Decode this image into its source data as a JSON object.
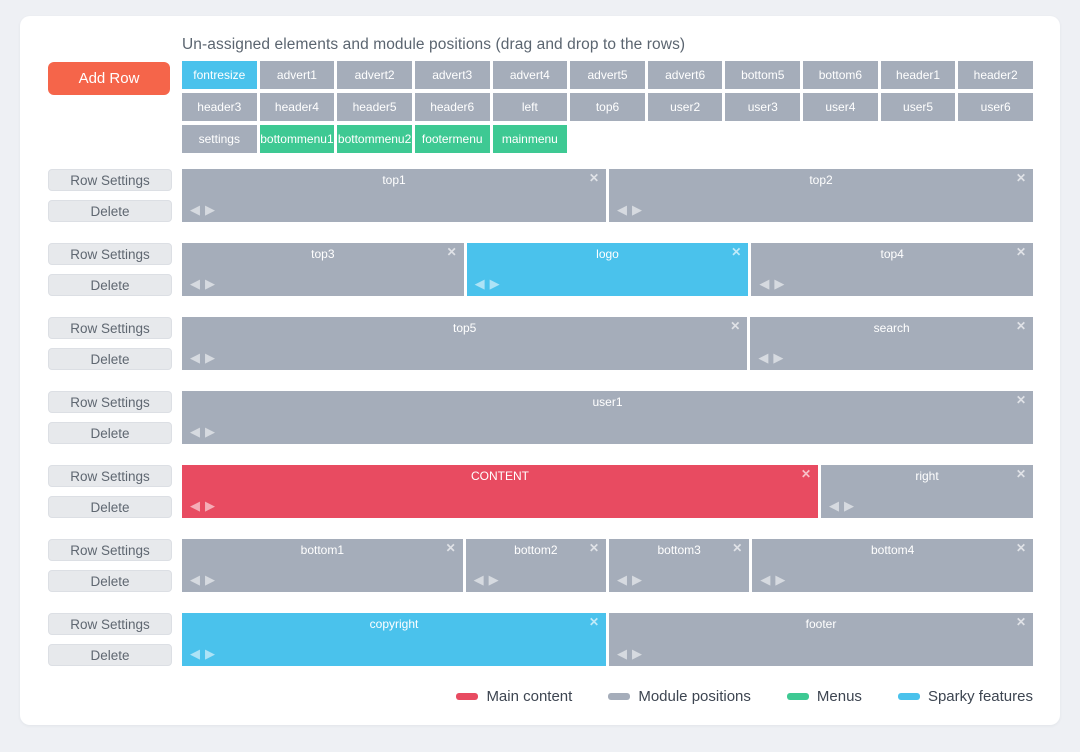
{
  "header": {
    "title": "Un-assigned elements and module positions (drag and drop to the rows)",
    "add_row_label": "Add Row"
  },
  "row_controls": {
    "settings_label": "Row Settings",
    "delete_label": "Delete"
  },
  "icons": {
    "close": "✕",
    "arrow_left": "◀",
    "arrow_right": "▶"
  },
  "colors": {
    "main": "#e84b61",
    "module": "#a5adba",
    "menu": "#3ec993",
    "sparky": "#4ac2ec",
    "add_row": "#f5654a"
  },
  "unassigned": [
    {
      "label": "fontresize",
      "type": "sparky"
    },
    {
      "label": "advert1",
      "type": "module"
    },
    {
      "label": "advert2",
      "type": "module"
    },
    {
      "label": "advert3",
      "type": "module"
    },
    {
      "label": "advert4",
      "type": "module"
    },
    {
      "label": "advert5",
      "type": "module"
    },
    {
      "label": "advert6",
      "type": "module"
    },
    {
      "label": "bottom5",
      "type": "module"
    },
    {
      "label": "bottom6",
      "type": "module"
    },
    {
      "label": "header1",
      "type": "module"
    },
    {
      "label": "header2",
      "type": "module"
    },
    {
      "label": "header3",
      "type": "module"
    },
    {
      "label": "header4",
      "type": "module"
    },
    {
      "label": "header5",
      "type": "module"
    },
    {
      "label": "header6",
      "type": "module"
    },
    {
      "label": "left",
      "type": "module"
    },
    {
      "label": "top6",
      "type": "module"
    },
    {
      "label": "user2",
      "type": "module"
    },
    {
      "label": "user3",
      "type": "module"
    },
    {
      "label": "user4",
      "type": "module"
    },
    {
      "label": "user5",
      "type": "module"
    },
    {
      "label": "user6",
      "type": "module"
    },
    {
      "label": "settings",
      "type": "module"
    },
    {
      "label": "bottommenu1",
      "type": "menu"
    },
    {
      "label": "bottommenu2",
      "type": "menu"
    },
    {
      "label": "footermenu",
      "type": "menu"
    },
    {
      "label": "mainmenu",
      "type": "menu"
    }
  ],
  "rows": [
    {
      "blocks": [
        {
          "label": "top1",
          "type": "module",
          "span": 6
        },
        {
          "label": "top2",
          "type": "module",
          "span": 6
        }
      ]
    },
    {
      "blocks": [
        {
          "label": "top3",
          "type": "module",
          "span": 4
        },
        {
          "label": "logo",
          "type": "sparky",
          "span": 4
        },
        {
          "label": "top4",
          "type": "module",
          "span": 4
        }
      ]
    },
    {
      "blocks": [
        {
          "label": "top5",
          "type": "module",
          "span": 8
        },
        {
          "label": "search",
          "type": "module",
          "span": 4
        }
      ]
    },
    {
      "blocks": [
        {
          "label": "user1",
          "type": "module",
          "span": 12
        }
      ]
    },
    {
      "blocks": [
        {
          "label": "CONTENT",
          "type": "main",
          "span": 9
        },
        {
          "label": "right",
          "type": "module",
          "span": 3
        }
      ]
    },
    {
      "blocks": [
        {
          "label": "bottom1",
          "type": "module",
          "span": 4
        },
        {
          "label": "bottom2",
          "type": "module",
          "span": 2
        },
        {
          "label": "bottom3",
          "type": "module",
          "span": 2
        },
        {
          "label": "bottom4",
          "type": "module",
          "span": 4
        }
      ]
    },
    {
      "blocks": [
        {
          "label": "copyright",
          "type": "sparky",
          "span": 6
        },
        {
          "label": "footer",
          "type": "module",
          "span": 6
        }
      ]
    }
  ],
  "legend": [
    {
      "label": "Main content",
      "type": "main"
    },
    {
      "label": "Module positions",
      "type": "module"
    },
    {
      "label": "Menus",
      "type": "menu"
    },
    {
      "label": "Sparky features",
      "type": "sparky"
    }
  ]
}
